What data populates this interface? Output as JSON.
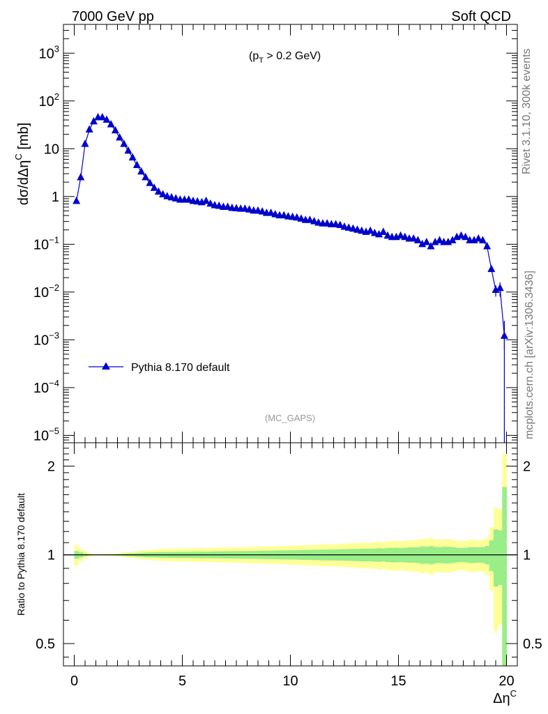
{
  "header": {
    "left": "7000 GeV pp",
    "right": "Soft QCD"
  },
  "side_labels": {
    "rivet": "Rivet 3.1.10,  300k events",
    "mcplots": "mcplots.cern.ch [arXiv:1306.3436]"
  },
  "chart_data": [
    {
      "type": "line",
      "panel": "main",
      "annotation": "(p_T > 0.2 GeV)",
      "watermark": "(MC_GAPS)",
      "ylabel": "dσ/dΔη^C [mb]",
      "yscale": "log",
      "xlim": [
        -0.5,
        20.5
      ],
      "ylim": [
        7e-06,
        4000
      ],
      "y_ticks": [
        "10^-5",
        "10^-4",
        "10^-3",
        "10^-2",
        "10^-1",
        "1",
        "10",
        "10^2",
        "10^3"
      ],
      "legend": {
        "label": "Pythia 8.170 default",
        "position": "lower-left",
        "color": "#0000cc"
      },
      "series": [
        {
          "name": "Pythia 8.170 default",
          "color": "#0000cc",
          "marker": "triangle",
          "x": [
            0.1,
            0.3,
            0.5,
            0.7,
            0.9,
            1.1,
            1.3,
            1.5,
            1.7,
            1.9,
            2.1,
            2.3,
            2.5,
            2.7,
            2.9,
            3.1,
            3.3,
            3.5,
            3.7,
            3.9,
            4.1,
            4.3,
            4.5,
            4.7,
            4.9,
            5.1,
            5.3,
            5.5,
            5.7,
            5.9,
            6.1,
            6.3,
            6.5,
            6.7,
            6.9,
            7.1,
            7.3,
            7.5,
            7.7,
            7.9,
            8.1,
            8.3,
            8.5,
            8.7,
            8.9,
            9.1,
            9.3,
            9.5,
            9.7,
            9.9,
            10.1,
            10.3,
            10.5,
            10.7,
            10.9,
            11.1,
            11.3,
            11.5,
            11.7,
            11.9,
            12.1,
            12.3,
            12.5,
            12.7,
            12.9,
            13.1,
            13.3,
            13.5,
            13.7,
            13.9,
            14.1,
            14.3,
            14.5,
            14.7,
            14.9,
            15.1,
            15.3,
            15.5,
            15.7,
            15.9,
            16.1,
            16.3,
            16.5,
            16.7,
            16.9,
            17.1,
            17.3,
            17.5,
            17.7,
            17.9,
            18.1,
            18.3,
            18.5,
            18.7,
            18.9,
            19.1,
            19.3,
            19.5,
            19.7,
            19.9
          ],
          "y": [
            0.8,
            2.5,
            12.5,
            25,
            37,
            45,
            45,
            40,
            32,
            24,
            17,
            12.5,
            9,
            6.5,
            4.5,
            3.3,
            2.5,
            1.9,
            1.5,
            1.25,
            1.1,
            1.0,
            0.95,
            0.9,
            0.85,
            0.85,
            0.85,
            0.8,
            0.78,
            0.75,
            0.8,
            0.7,
            0.65,
            0.63,
            0.6,
            0.6,
            0.57,
            0.56,
            0.55,
            0.55,
            0.53,
            0.5,
            0.5,
            0.48,
            0.45,
            0.45,
            0.42,
            0.4,
            0.4,
            0.38,
            0.37,
            0.36,
            0.34,
            0.32,
            0.32,
            0.3,
            0.28,
            0.27,
            0.27,
            0.26,
            0.26,
            0.25,
            0.23,
            0.22,
            0.21,
            0.2,
            0.19,
            0.18,
            0.19,
            0.17,
            0.16,
            0.18,
            0.15,
            0.14,
            0.14,
            0.15,
            0.14,
            0.13,
            0.13,
            0.12,
            0.1,
            0.11,
            0.09,
            0.11,
            0.12,
            0.11,
            0.11,
            0.12,
            0.14,
            0.15,
            0.14,
            0.12,
            0.12,
            0.13,
            0.12,
            0.09,
            0.03,
            0.011,
            0.012,
            0.0012
          ],
          "last_point_drop_to": 7e-06
        }
      ]
    },
    {
      "type": "area",
      "panel": "ratio",
      "ylabel": "Ratio to Pythia 8.170 default",
      "xlabel": "Δη^C",
      "yscale": "log",
      "xlim": [
        -0.5,
        20.5
      ],
      "ylim": [
        0.42,
        2.4
      ],
      "y_ticks": [
        "0.5",
        "1",
        "2"
      ],
      "x_ticks": [
        "0",
        "5",
        "10",
        "15",
        "20"
      ],
      "reference_line": 1.0,
      "band_colors": {
        "inner": "#99ee88",
        "outer": "#ffff99"
      },
      "x": [
        0.1,
        0.3,
        0.5,
        0.7,
        0.9,
        1.1,
        1.3,
        1.5,
        1.7,
        1.9,
        2.1,
        2.3,
        2.5,
        2.7,
        2.9,
        3.1,
        3.3,
        3.5,
        3.7,
        3.9,
        4.1,
        4.3,
        4.5,
        4.7,
        4.9,
        5.1,
        5.3,
        5.5,
        5.7,
        5.9,
        6.1,
        6.3,
        6.5,
        6.7,
        6.9,
        7.1,
        7.3,
        7.5,
        7.7,
        7.9,
        8.1,
        8.3,
        8.5,
        8.7,
        8.9,
        9.1,
        9.3,
        9.5,
        9.7,
        9.9,
        10.1,
        10.3,
        10.5,
        10.7,
        10.9,
        11.1,
        11.3,
        11.5,
        11.7,
        11.9,
        12.1,
        12.3,
        12.5,
        12.7,
        12.9,
        13.1,
        13.3,
        13.5,
        13.7,
        13.9,
        14.1,
        14.3,
        14.5,
        14.7,
        14.9,
        15.1,
        15.3,
        15.5,
        15.7,
        15.9,
        16.1,
        16.3,
        16.5,
        16.7,
        16.9,
        17.1,
        17.3,
        17.5,
        17.7,
        17.9,
        18.1,
        18.3,
        18.5,
        18.7,
        18.9,
        19.1,
        19.3,
        19.5,
        19.7,
        19.9
      ],
      "inner_rel_err": [
        0.03,
        0.02,
        0.01,
        0.005,
        0.003,
        0.003,
        0.003,
        0.003,
        0.003,
        0.005,
        0.006,
        0.008,
        0.01,
        0.012,
        0.014,
        0.016,
        0.018,
        0.019,
        0.02,
        0.021,
        0.022,
        0.022,
        0.023,
        0.023,
        0.024,
        0.024,
        0.024,
        0.025,
        0.025,
        0.026,
        0.025,
        0.026,
        0.027,
        0.027,
        0.028,
        0.028,
        0.029,
        0.029,
        0.03,
        0.03,
        0.03,
        0.031,
        0.031,
        0.032,
        0.033,
        0.033,
        0.034,
        0.035,
        0.035,
        0.036,
        0.036,
        0.037,
        0.038,
        0.039,
        0.039,
        0.04,
        0.041,
        0.042,
        0.042,
        0.043,
        0.043,
        0.044,
        0.045,
        0.046,
        0.047,
        0.048,
        0.049,
        0.05,
        0.049,
        0.052,
        0.053,
        0.05,
        0.055,
        0.057,
        0.057,
        0.055,
        0.057,
        0.06,
        0.06,
        0.062,
        0.068,
        0.065,
        0.072,
        0.065,
        0.062,
        0.065,
        0.065,
        0.062,
        0.057,
        0.055,
        0.057,
        0.062,
        0.062,
        0.06,
        0.062,
        0.072,
        0.12,
        0.22,
        0.21,
        0.7
      ],
      "outer_rel_err": [
        0.08,
        0.05,
        0.03,
        0.01,
        0.006,
        0.005,
        0.005,
        0.006,
        0.008,
        0.01,
        0.013,
        0.017,
        0.021,
        0.025,
        0.029,
        0.033,
        0.037,
        0.04,
        0.043,
        0.045,
        0.047,
        0.048,
        0.049,
        0.05,
        0.051,
        0.051,
        0.052,
        0.053,
        0.054,
        0.055,
        0.054,
        0.056,
        0.057,
        0.058,
        0.059,
        0.059,
        0.06,
        0.061,
        0.062,
        0.062,
        0.063,
        0.065,
        0.065,
        0.066,
        0.068,
        0.068,
        0.07,
        0.071,
        0.071,
        0.073,
        0.074,
        0.075,
        0.077,
        0.079,
        0.079,
        0.081,
        0.083,
        0.085,
        0.085,
        0.087,
        0.087,
        0.089,
        0.091,
        0.093,
        0.095,
        0.097,
        0.099,
        0.102,
        0.099,
        0.105,
        0.108,
        0.102,
        0.112,
        0.116,
        0.116,
        0.112,
        0.116,
        0.12,
        0.12,
        0.124,
        0.135,
        0.13,
        0.143,
        0.13,
        0.124,
        0.13,
        0.13,
        0.124,
        0.116,
        0.112,
        0.116,
        0.124,
        0.124,
        0.12,
        0.124,
        0.143,
        0.24,
        0.45,
        0.42,
        1.2
      ]
    }
  ]
}
